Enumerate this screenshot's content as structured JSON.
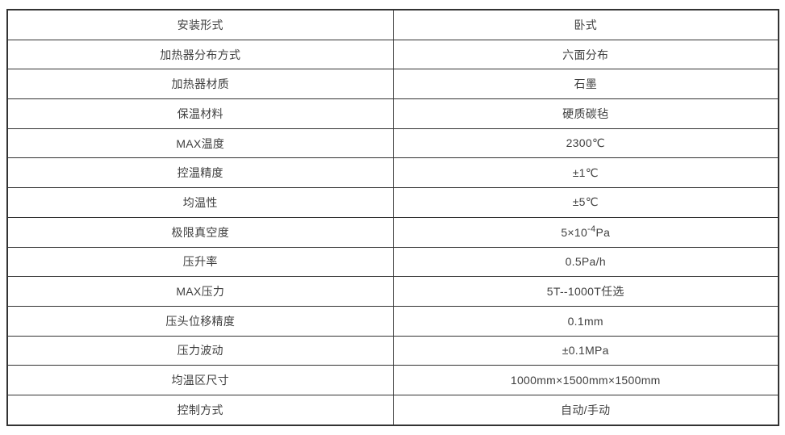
{
  "table": {
    "rows": [
      {
        "label": "安装形式",
        "value": "卧式"
      },
      {
        "label": "加热器分布方式",
        "value": "六面分布"
      },
      {
        "label": "加热器材质",
        "value": "石墨"
      },
      {
        "label": "保温材料",
        "value": "硬质碳毡"
      },
      {
        "label": "MAX温度",
        "value": "2300℃"
      },
      {
        "label": "控温精度",
        "value": "±1℃"
      },
      {
        "label": "均温性",
        "value": "±5℃"
      },
      {
        "label": "极限真空度",
        "value_base": "5×10",
        "value_sup": "-4",
        "value_end": "Pa"
      },
      {
        "label": "压升率",
        "value": "0.5Pa/h"
      },
      {
        "label": "MAX压力",
        "value": "5T--1000T任选"
      },
      {
        "label": "压头位移精度",
        "value": "0.1mm"
      },
      {
        "label": "压力波动",
        "value": "±0.1MPa"
      },
      {
        "label": "均温区尺寸",
        "value": "1000mm×1500mm×1500mm"
      },
      {
        "label": "控制方式",
        "value": "自动/手动"
      }
    ]
  },
  "colors": {
    "border": "#333333",
    "text": "#404040",
    "background": "#ffffff"
  }
}
